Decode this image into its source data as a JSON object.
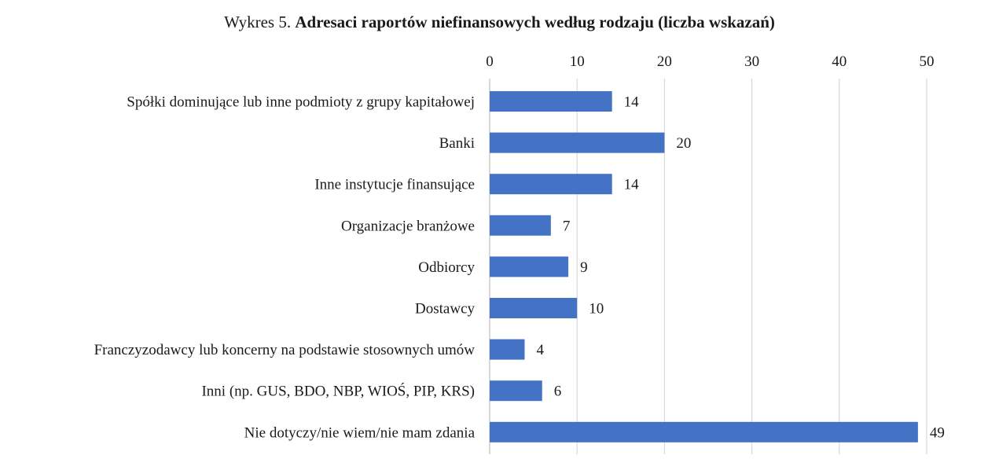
{
  "chart_data": {
    "type": "bar",
    "orientation": "horizontal",
    "title_prefix": "Wykres 5.",
    "title": "Adresaci raportów niefinansowych według rodzaju (liczba wskazań)",
    "categories": [
      "Spółki dominujące lub inne podmioty z grupy kapitałowej",
      "Banki",
      "Inne instytucje finansujące",
      "Organizacje branżowe",
      "Odbiorcy",
      "Dostawcy",
      "Franczyzodawcy lub koncerny na podstawie stosownych umów",
      "Inni (np. GUS, BDO, NBP, WIOŚ, PIP, KRS)",
      "Nie dotyczy/nie wiem/nie mam zdania"
    ],
    "values": [
      14,
      20,
      14,
      7,
      9,
      10,
      4,
      6,
      49
    ],
    "xlim": [
      0,
      50
    ],
    "x_ticks": [
      0,
      10,
      20,
      30,
      40,
      50
    ],
    "x_axis_position": "top",
    "grid": true,
    "data_labels": true,
    "legend": "none",
    "bar_color": "#4472c4",
    "grid_color": "#d9d9d9"
  }
}
